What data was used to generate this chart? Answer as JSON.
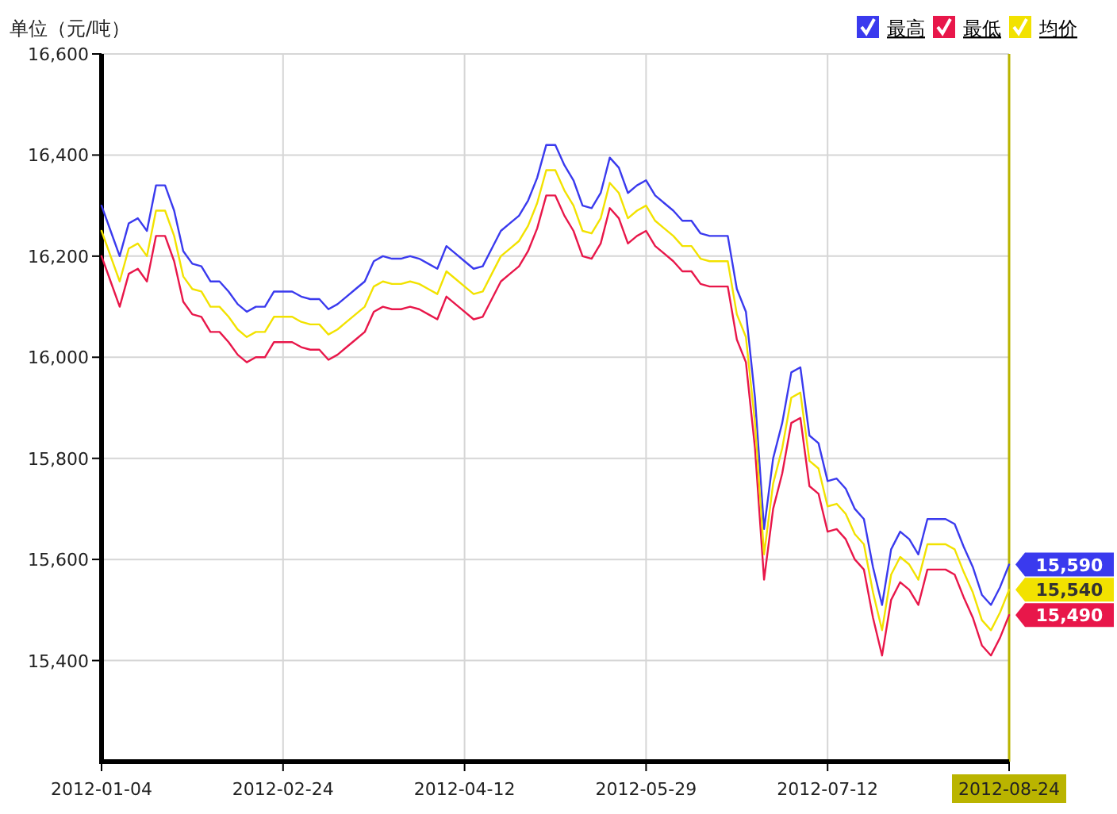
{
  "chart_data": {
    "type": "line",
    "ylabel": "单位（元/吨）",
    "categories": [
      "2012-01-04",
      null,
      null,
      null,
      null,
      null,
      null,
      null,
      null,
      null,
      null,
      null,
      null,
      null,
      null,
      null,
      null,
      null,
      null,
      null,
      "2012-02-24",
      null,
      null,
      null,
      null,
      null,
      null,
      null,
      null,
      null,
      null,
      null,
      null,
      null,
      null,
      null,
      null,
      null,
      null,
      null,
      "2012-04-12",
      null,
      null,
      null,
      null,
      null,
      null,
      null,
      null,
      null,
      null,
      null,
      null,
      null,
      null,
      null,
      null,
      null,
      null,
      null,
      "2012-05-29",
      null,
      null,
      null,
      null,
      null,
      null,
      null,
      null,
      null,
      null,
      null,
      null,
      null,
      null,
      null,
      null,
      null,
      null,
      null,
      "2012-07-12",
      null,
      null,
      null,
      null,
      null,
      null,
      null,
      null,
      null,
      null,
      null,
      null,
      null,
      null,
      null,
      null,
      null,
      null,
      null,
      "2012-08-24"
    ],
    "series": [
      {
        "name": "最高",
        "color": "#3a3aee",
        "values": [
          16300,
          16250,
          16200,
          16265,
          16275,
          16250,
          16340,
          16340,
          16290,
          16210,
          16185,
          16180,
          16150,
          16150,
          16130,
          16105,
          16090,
          16100,
          16100,
          16130,
          16130,
          16130,
          16120,
          16115,
          16115,
          16095,
          16105,
          16120,
          16135,
          16150,
          16190,
          16200,
          16195,
          16195,
          16200,
          16195,
          16185,
          16175,
          16220,
          16205,
          16190,
          16175,
          16180,
          16215,
          16250,
          16265,
          16280,
          16310,
          16355,
          16420,
          16420,
          16380,
          16350,
          16300,
          16295,
          16325,
          16395,
          16375,
          16325,
          16340,
          16350,
          16320,
          16305,
          16290,
          16270,
          16270,
          16245,
          16240,
          16240,
          16240,
          16135,
          16090,
          15920,
          15660,
          15800,
          15870,
          15970,
          15980,
          15845,
          15830,
          15755,
          15760,
          15740,
          15700,
          15680,
          15585,
          15510,
          15620,
          15655,
          15640,
          15610,
          15680,
          15680,
          15680,
          15670,
          15625,
          15585,
          15530,
          15510,
          15545,
          15590
        ],
        "value_labels": [
          null,
          null,
          null,
          null,
          null,
          null,
          null,
          null,
          null,
          null,
          null,
          null,
          null,
          null,
          null,
          null,
          null,
          null,
          null,
          null,
          null,
          null,
          null,
          null,
          null,
          null,
          null,
          null,
          null,
          null,
          null,
          null,
          null,
          null,
          null,
          null,
          null,
          null,
          null,
          null,
          null,
          null,
          null,
          null,
          null,
          null,
          null,
          null,
          null,
          null,
          null,
          null,
          null,
          null,
          null,
          null,
          null,
          null,
          null,
          null,
          null,
          null,
          null,
          null,
          null,
          null,
          null,
          null,
          null,
          null,
          null,
          null,
          null,
          null,
          null,
          null,
          null,
          null,
          null,
          null,
          null,
          null,
          null,
          null,
          null,
          null,
          null,
          null,
          null,
          null,
          null,
          null,
          null,
          null,
          null,
          null,
          null,
          null,
          null,
          null,
          "15,590"
        ]
      },
      {
        "name": "最低",
        "color": "#e8174a",
        "values": [
          16200,
          16150,
          16100,
          16165,
          16175,
          16150,
          16240,
          16240,
          16190,
          16110,
          16085,
          16080,
          16050,
          16050,
          16030,
          16005,
          15990,
          16000,
          16000,
          16030,
          16030,
          16030,
          16020,
          16015,
          16015,
          15995,
          16005,
          16020,
          16035,
          16050,
          16090,
          16100,
          16095,
          16095,
          16100,
          16095,
          16085,
          16075,
          16120,
          16105,
          16090,
          16075,
          16080,
          16115,
          16150,
          16165,
          16180,
          16210,
          16255,
          16320,
          16320,
          16280,
          16250,
          16200,
          16195,
          16225,
          16295,
          16275,
          16225,
          16240,
          16250,
          16220,
          16205,
          16190,
          16170,
          16170,
          16145,
          16140,
          16140,
          16140,
          16035,
          15990,
          15820,
          15560,
          15700,
          15770,
          15870,
          15880,
          15745,
          15730,
          15655,
          15660,
          15640,
          15600,
          15580,
          15485,
          15410,
          15520,
          15555,
          15540,
          15510,
          15580,
          15580,
          15580,
          15570,
          15525,
          15485,
          15430,
          15410,
          15445,
          15490
        ],
        "value_labels": [
          null,
          null,
          null,
          null,
          null,
          null,
          null,
          null,
          null,
          null,
          null,
          null,
          null,
          null,
          null,
          null,
          null,
          null,
          null,
          null,
          null,
          null,
          null,
          null,
          null,
          null,
          null,
          null,
          null,
          null,
          null,
          null,
          null,
          null,
          null,
          null,
          null,
          null,
          null,
          null,
          null,
          null,
          null,
          null,
          null,
          null,
          null,
          null,
          null,
          null,
          null,
          null,
          null,
          null,
          null,
          null,
          null,
          null,
          null,
          null,
          null,
          null,
          null,
          null,
          null,
          null,
          null,
          null,
          null,
          null,
          null,
          null,
          null,
          null,
          null,
          null,
          null,
          null,
          null,
          null,
          null,
          null,
          null,
          null,
          null,
          null,
          null,
          null,
          null,
          null,
          null,
          null,
          null,
          null,
          null,
          null,
          null,
          null,
          null,
          null,
          "15,490"
        ]
      },
      {
        "name": "均价",
        "color": "#f2e200",
        "values": [
          16250,
          16200,
          16150,
          16215,
          16225,
          16200,
          16290,
          16290,
          16240,
          16160,
          16135,
          16130,
          16100,
          16100,
          16080,
          16055,
          16040,
          16050,
          16050,
          16080,
          16080,
          16080,
          16070,
          16065,
          16065,
          16045,
          16055,
          16070,
          16085,
          16100,
          16140,
          16150,
          16145,
          16145,
          16150,
          16145,
          16135,
          16125,
          16170,
          16155,
          16140,
          16125,
          16130,
          16165,
          16200,
          16215,
          16230,
          16260,
          16305,
          16370,
          16370,
          16330,
          16300,
          16250,
          16245,
          16275,
          16345,
          16325,
          16275,
          16290,
          16300,
          16270,
          16255,
          16240,
          16220,
          16220,
          16195,
          16190,
          16190,
          16190,
          16085,
          16040,
          15870,
          15610,
          15750,
          15820,
          15920,
          15930,
          15795,
          15780,
          15705,
          15710,
          15690,
          15650,
          15630,
          15535,
          15460,
          15570,
          15605,
          15590,
          15560,
          15630,
          15630,
          15630,
          15620,
          15575,
          15535,
          15480,
          15460,
          15495,
          15540
        ],
        "value_labels": [
          null,
          null,
          null,
          null,
          null,
          null,
          null,
          null,
          null,
          null,
          null,
          null,
          null,
          null,
          null,
          null,
          null,
          null,
          null,
          null,
          null,
          null,
          null,
          null,
          null,
          null,
          null,
          null,
          null,
          null,
          null,
          null,
          null,
          null,
          null,
          null,
          null,
          null,
          null,
          null,
          null,
          null,
          null,
          null,
          null,
          null,
          null,
          null,
          null,
          null,
          null,
          null,
          null,
          null,
          null,
          null,
          null,
          null,
          null,
          null,
          null,
          null,
          null,
          null,
          null,
          null,
          null,
          null,
          null,
          null,
          null,
          null,
          null,
          null,
          null,
          null,
          null,
          null,
          null,
          null,
          null,
          null,
          null,
          null,
          null,
          null,
          null,
          null,
          null,
          null,
          null,
          null,
          null,
          null,
          null,
          null,
          null,
          null,
          null,
          null,
          "15,540"
        ]
      }
    ],
    "ylim": [
      15200,
      16600
    ],
    "yticks": [
      {
        "value": 15400,
        "label": "15,400"
      },
      {
        "value": 15600,
        "label": "15,600"
      },
      {
        "value": 15800,
        "label": "15,800"
      },
      {
        "value": 16000,
        "label": "16,000"
      },
      {
        "value": 16200,
        "label": "16,200"
      },
      {
        "value": 16400,
        "label": "16,400"
      },
      {
        "value": 16600,
        "label": "16,600"
      }
    ],
    "grid": true,
    "legend": "top right",
    "ref_lines": [
      {
        "axis": "x",
        "value": "2012-08-24",
        "color": "#bab400"
      }
    ]
  }
}
